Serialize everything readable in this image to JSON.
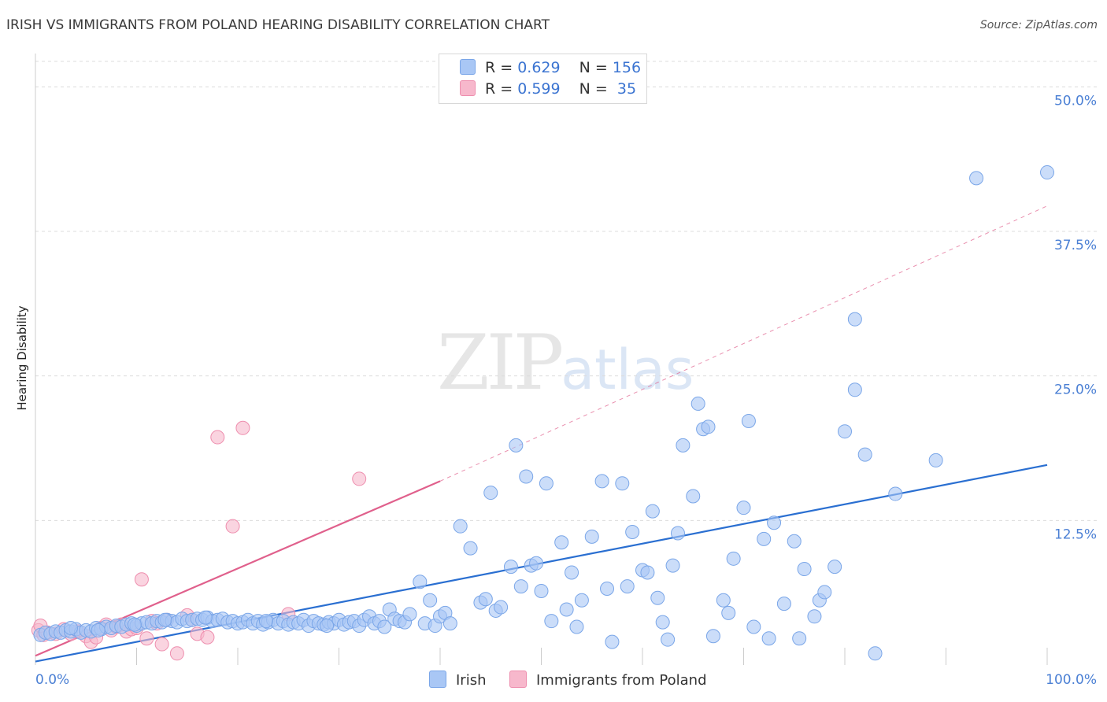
{
  "title": "IRISH VS IMMIGRANTS FROM POLAND HEARING DISABILITY CORRELATION CHART",
  "source": "Source: ZipAtlas.com",
  "watermark": {
    "zip": "ZIP",
    "atlas": "atlas"
  },
  "legend_top": [
    {
      "r_label": "R = ",
      "r_value": "0.629",
      "n_label": "N = ",
      "n_value": "156",
      "color": "#a9c7f5"
    },
    {
      "r_label": "R = ",
      "r_value": "0.599",
      "n_label": "N = ",
      "n_value": " 35",
      "color": "#f7b8cc"
    }
  ],
  "legend_bottom": [
    "Irish",
    "Immigrants from Poland"
  ],
  "colors": {
    "irish": "#a9c7f5",
    "irish_stroke": "#7aa6e8",
    "irish_line": "#2a6fd1",
    "poland": "#f7b8cc",
    "poland_stroke": "#ee8eae",
    "poland_line": "#e0608c",
    "tick": "#4a7fd4",
    "grid": "#dcdcdc"
  },
  "chart_data": {
    "type": "scatter",
    "title": "IRISH VS IMMIGRANTS FROM POLAND HEARING DISABILITY CORRELATION CHART",
    "xlabel": "",
    "ylabel": "Hearing Disability",
    "xlim": [
      0,
      100
    ],
    "ylim": [
      0,
      50
    ],
    "x_tick_labels": [
      "0.0%",
      "100.0%"
    ],
    "y_tick_labels": [
      "12.5%",
      "25.0%",
      "37.5%",
      "50.0%"
    ],
    "y_ticks": [
      12.5,
      25,
      37.5,
      50
    ],
    "grid": true,
    "legend_placement": "top-center",
    "series": [
      {
        "name": "Irish",
        "r": 0.629,
        "n": 156,
        "trend": {
          "x": [
            0,
            100
          ],
          "y": [
            0.3,
            17.3
          ],
          "style": "solid"
        },
        "points": [
          [
            0.5,
            2.6
          ],
          [
            1,
            2.8
          ],
          [
            1.5,
            2.7
          ],
          [
            2,
            2.9
          ],
          [
            2.5,
            2.8
          ],
          [
            3,
            3.0
          ],
          [
            3.5,
            2.9
          ],
          [
            4,
            3.1
          ],
          [
            4.5,
            2.8
          ],
          [
            5,
            3.0
          ],
          [
            5.5,
            2.9
          ],
          [
            6,
            3.2
          ],
          [
            6.5,
            3.1
          ],
          [
            7,
            3.3
          ],
          [
            7.5,
            3.2
          ],
          [
            8,
            3.4
          ],
          [
            8.5,
            3.3
          ],
          [
            9,
            3.5
          ],
          [
            9.5,
            3.6
          ],
          [
            10,
            3.4
          ],
          [
            10.5,
            3.6
          ],
          [
            11,
            3.7
          ],
          [
            11.5,
            3.6
          ],
          [
            12,
            3.8
          ],
          [
            12.5,
            3.7
          ],
          [
            13,
            3.9
          ],
          [
            13.5,
            3.8
          ],
          [
            14,
            3.7
          ],
          [
            14.5,
            4.0
          ],
          [
            15,
            3.8
          ],
          [
            15.5,
            3.9
          ],
          [
            16,
            4.0
          ],
          [
            16.5,
            3.9
          ],
          [
            17,
            4.1
          ],
          [
            17.5,
            3.8
          ],
          [
            18,
            3.9
          ],
          [
            18.5,
            4.0
          ],
          [
            19,
            3.7
          ],
          [
            19.5,
            3.8
          ],
          [
            20,
            3.6
          ],
          [
            20.5,
            3.7
          ],
          [
            21,
            3.9
          ],
          [
            21.5,
            3.6
          ],
          [
            22,
            3.8
          ],
          [
            22.5,
            3.5
          ],
          [
            23,
            3.7
          ],
          [
            23.5,
            3.9
          ],
          [
            24,
            3.6
          ],
          [
            24.5,
            3.8
          ],
          [
            25,
            3.5
          ],
          [
            25.5,
            3.7
          ],
          [
            26,
            3.6
          ],
          [
            26.5,
            3.9
          ],
          [
            27,
            3.4
          ],
          [
            27.5,
            3.8
          ],
          [
            28,
            3.6
          ],
          [
            28.5,
            3.5
          ],
          [
            29,
            3.7
          ],
          [
            29.5,
            3.6
          ],
          [
            30,
            3.9
          ],
          [
            30.5,
            3.5
          ],
          [
            31,
            3.7
          ],
          [
            31.5,
            3.8
          ],
          [
            32,
            3.4
          ],
          [
            32.5,
            3.9
          ],
          [
            33,
            4.2
          ],
          [
            33.5,
            3.6
          ],
          [
            34,
            3.8
          ],
          [
            34.5,
            3.3
          ],
          [
            35,
            4.8
          ],
          [
            35.5,
            4.0
          ],
          [
            36,
            3.8
          ],
          [
            36.5,
            3.7
          ],
          [
            37,
            4.4
          ],
          [
            38,
            7.2
          ],
          [
            38.5,
            3.6
          ],
          [
            39,
            5.6
          ],
          [
            39.5,
            3.4
          ],
          [
            40,
            4.2
          ],
          [
            40.5,
            4.5
          ],
          [
            41,
            3.6
          ],
          [
            42,
            12.0
          ],
          [
            43,
            10.1
          ],
          [
            44,
            5.4
          ],
          [
            44.5,
            5.7
          ],
          [
            45,
            14.9
          ],
          [
            45.5,
            4.7
          ],
          [
            46,
            5.0
          ],
          [
            47,
            8.5
          ],
          [
            47.5,
            19.0
          ],
          [
            48,
            6.8
          ],
          [
            48.5,
            16.3
          ],
          [
            49,
            8.6
          ],
          [
            49.5,
            8.8
          ],
          [
            50,
            6.4
          ],
          [
            50.5,
            15.7
          ],
          [
            51,
            3.8
          ],
          [
            52,
            10.6
          ],
          [
            52.5,
            4.8
          ],
          [
            53,
            8.0
          ],
          [
            53.5,
            3.3
          ],
          [
            54,
            5.6
          ],
          [
            55,
            11.1
          ],
          [
            56,
            15.9
          ],
          [
            56.5,
            6.6
          ],
          [
            57,
            2.0
          ],
          [
            58,
            15.7
          ],
          [
            58.5,
            6.8
          ],
          [
            59,
            11.5
          ],
          [
            60,
            8.2
          ],
          [
            60.5,
            8.0
          ],
          [
            61,
            13.3
          ],
          [
            61.5,
            5.8
          ],
          [
            62,
            3.7
          ],
          [
            62.5,
            2.2
          ],
          [
            63,
            8.6
          ],
          [
            63.5,
            11.4
          ],
          [
            64,
            19.0
          ],
          [
            65,
            14.6
          ],
          [
            65.5,
            22.6
          ],
          [
            66,
            20.4
          ],
          [
            66.5,
            20.6
          ],
          [
            67,
            2.5
          ],
          [
            68,
            5.6
          ],
          [
            68.5,
            4.5
          ],
          [
            69,
            9.2
          ],
          [
            70,
            13.6
          ],
          [
            70.5,
            21.1
          ],
          [
            71,
            3.3
          ],
          [
            72,
            10.9
          ],
          [
            72.5,
            2.3
          ],
          [
            73,
            12.3
          ],
          [
            74,
            5.3
          ],
          [
            75,
            10.7
          ],
          [
            75.5,
            2.3
          ],
          [
            76,
            8.3
          ],
          [
            77,
            4.2
          ],
          [
            77.5,
            5.6
          ],
          [
            78,
            6.3
          ],
          [
            79,
            8.5
          ],
          [
            80,
            20.2
          ],
          [
            81,
            23.8
          ],
          [
            82,
            18.2
          ],
          [
            83,
            1.0
          ],
          [
            85,
            14.8
          ],
          [
            89,
            17.7
          ],
          [
            93,
            42.1
          ],
          [
            100,
            42.6
          ],
          [
            81,
            29.9
          ],
          [
            3.5,
            3.2
          ],
          [
            6.2,
            3.0
          ],
          [
            9.8,
            3.5
          ],
          [
            12.8,
            3.9
          ],
          [
            16.8,
            4.1
          ],
          [
            22.8,
            3.8
          ],
          [
            28.8,
            3.4
          ]
        ]
      },
      {
        "name": "Immigrants from Poland",
        "r": 0.599,
        "n": 35,
        "trend": {
          "x": [
            0,
            40
          ],
          "y": [
            0.8,
            15.9
          ],
          "x_dashed_to": 100,
          "y_dashed_to": 39.7,
          "style": "solid-then-dashed"
        },
        "points": [
          [
            0.3,
            3.0
          ],
          [
            0.8,
            2.6
          ],
          [
            1.2,
            2.8
          ],
          [
            2,
            2.7
          ],
          [
            2.8,
            3.1
          ],
          [
            3.5,
            2.7
          ],
          [
            4.2,
            2.9
          ],
          [
            5,
            2.5
          ],
          [
            5.5,
            2.0
          ],
          [
            6,
            2.4
          ],
          [
            6.5,
            3.2
          ],
          [
            7,
            3.5
          ],
          [
            7.5,
            3.0
          ],
          [
            8,
            3.3
          ],
          [
            8.5,
            3.5
          ],
          [
            9,
            2.9
          ],
          [
            9.5,
            3.1
          ],
          [
            10,
            3.2
          ],
          [
            10.5,
            7.4
          ],
          [
            11,
            2.3
          ],
          [
            11.5,
            3.8
          ],
          [
            12,
            3.6
          ],
          [
            12.5,
            1.8
          ],
          [
            13,
            3.9
          ],
          [
            14,
            1.0
          ],
          [
            15,
            4.3
          ],
          [
            15.5,
            3.9
          ],
          [
            16,
            2.7
          ],
          [
            17,
            2.4
          ],
          [
            18,
            19.7
          ],
          [
            19.5,
            12.0
          ],
          [
            20.5,
            20.5
          ],
          [
            25,
            4.4
          ],
          [
            32,
            16.1
          ],
          [
            0.5,
            3.4
          ]
        ]
      }
    ]
  }
}
